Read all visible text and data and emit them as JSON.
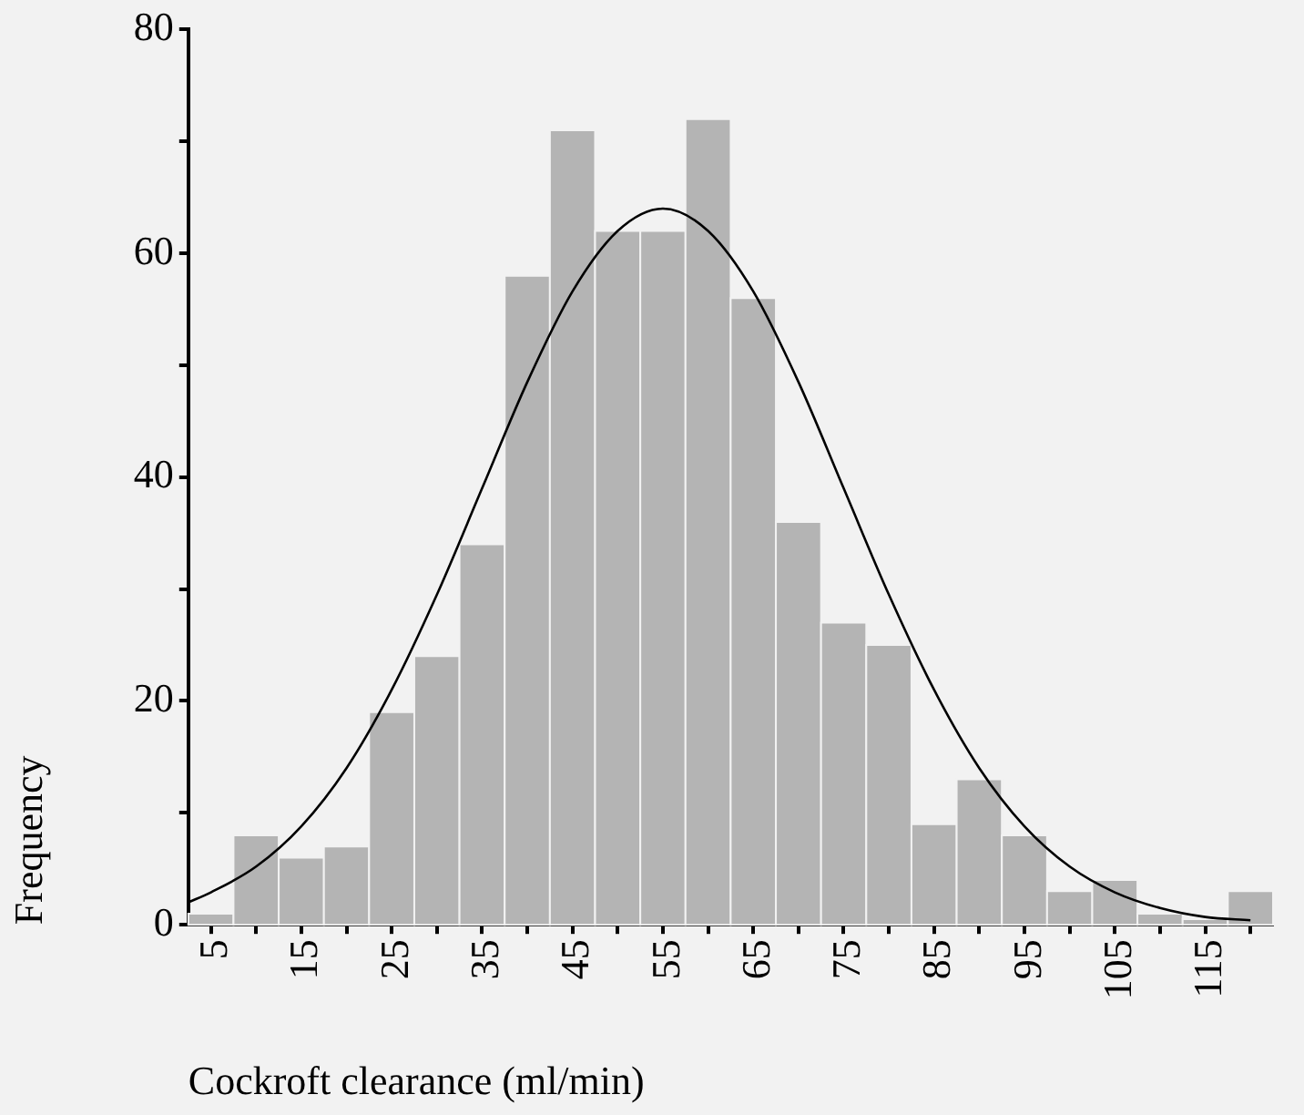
{
  "chart_data": {
    "type": "histogram",
    "xlabel": "Cockroft clearance (ml/min)",
    "ylabel": "Frequency",
    "bins": [
      2.5,
      7.5,
      12.5,
      17.5,
      22.5,
      27.5,
      32.5,
      37.5,
      42.5,
      47.5,
      52.5,
      57.5,
      62.5,
      67.5,
      72.5,
      77.5,
      82.5,
      87.5,
      92.5,
      97.5,
      102.5,
      107.5,
      112.5,
      117.5,
      122.5
    ],
    "series": [
      {
        "color": "#b4b4b4",
        "values": [
          1,
          8,
          6,
          7,
          19,
          24,
          34,
          58,
          71,
          62,
          62,
          72,
          56,
          36,
          27,
          25,
          9,
          13,
          8,
          3,
          4,
          1,
          0.5,
          3
        ]
      },
      {
        "type": "line",
        "color": "#000000",
        "x": [
          2.5,
          5,
          10,
          15,
          20,
          25,
          30,
          35,
          40,
          45,
          50,
          55,
          60,
          65,
          70,
          75,
          80,
          85,
          90,
          95,
          100,
          105,
          110,
          115,
          120
        ],
        "values": [
          2,
          2.9,
          5.2,
          8.8,
          14,
          21,
          29.5,
          39,
          48.5,
          56.6,
          62,
          64,
          62,
          56.6,
          48.5,
          39,
          29.5,
          21,
          14,
          8.8,
          5.2,
          2.9,
          1.5,
          0.7,
          0.4
        ]
      }
    ],
    "xlim": [
      2.5,
      122.5
    ],
    "ylim": [
      0,
      80
    ],
    "xticks": [
      5,
      {
        "value": 10,
        "label": null
      },
      15,
      {
        "value": 20,
        "label": null
      },
      25,
      {
        "value": 30,
        "label": null
      },
      35,
      {
        "value": 40,
        "label": null
      },
      45,
      {
        "value": 50,
        "label": null
      },
      55,
      {
        "value": 60,
        "label": null
      },
      65,
      {
        "value": 70,
        "label": null
      },
      75,
      {
        "value": 80,
        "label": null
      },
      85,
      {
        "value": 90,
        "label": null
      },
      95,
      {
        "value": 100,
        "label": null
      },
      105,
      {
        "value": 110,
        "label": null
      },
      115,
      {
        "value": 120,
        "label": null
      }
    ],
    "yticks": [
      0,
      {
        "value": 10,
        "label": null
      },
      20,
      {
        "value": 30,
        "label": null
      },
      40,
      {
        "value": 50,
        "label": null
      },
      60,
      {
        "value": 70,
        "label": null
      },
      80
    ],
    "grid": false,
    "legend": false,
    "marker": "none",
    "line_style": "solid"
  }
}
